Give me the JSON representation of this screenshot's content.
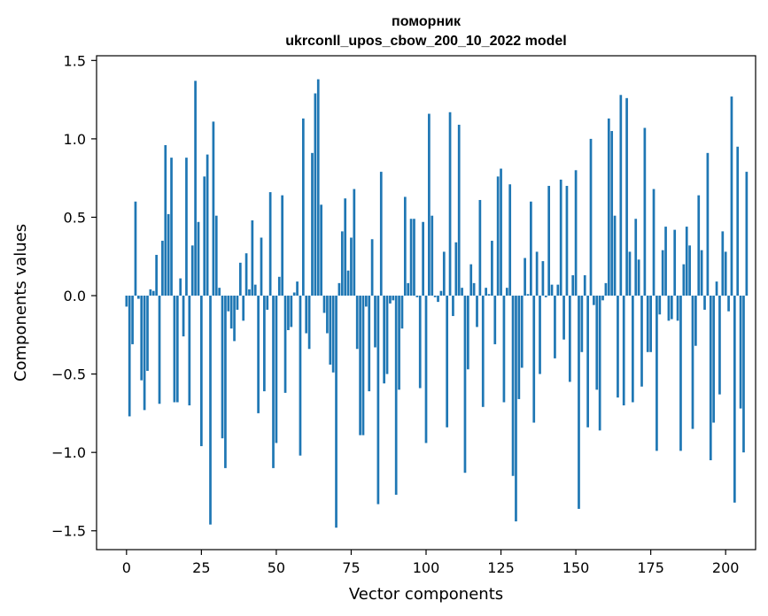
{
  "chart_data": {
    "type": "bar",
    "title": "поморник",
    "subtitle": "ukrconll_upos_cbow_200_10_2022 model",
    "xlabel": "Vector components",
    "ylabel": "Components values",
    "xlim": [
      -10,
      210
    ],
    "ylim": [
      -1.62,
      1.53
    ],
    "xticks": [
      0,
      25,
      50,
      75,
      100,
      125,
      150,
      175,
      200
    ],
    "yticks": [
      -1.5,
      -1.0,
      -0.5,
      0.0,
      0.5,
      1.0,
      1.5
    ],
    "ytick_labels": [
      "−1.5",
      "−1.0",
      "−0.5",
      "0.0",
      "0.5",
      "1.0",
      "1.5"
    ],
    "bar_color": "#1f77b4",
    "grid": false,
    "values": [
      -0.07,
      -0.77,
      -0.31,
      0.6,
      -0.02,
      -0.54,
      -0.73,
      -0.48,
      0.04,
      0.03,
      0.26,
      -0.69,
      0.35,
      0.96,
      0.52,
      0.88,
      -0.68,
      -0.68,
      0.11,
      -0.26,
      0.88,
      -0.7,
      0.32,
      1.37,
      0.47,
      -0.96,
      0.76,
      0.9,
      -1.46,
      1.11,
      0.51,
      0.05,
      -0.91,
      -1.1,
      -0.1,
      -0.21,
      -0.29,
      -0.09,
      0.21,
      -0.16,
      0.27,
      0.04,
      0.48,
      0.07,
      -0.75,
      0.37,
      -0.61,
      -0.09,
      0.66,
      -1.1,
      -0.94,
      0.12,
      0.64,
      -0.62,
      -0.22,
      -0.2,
      0.02,
      0.09,
      -1.02,
      1.13,
      -0.24,
      -0.34,
      0.91,
      1.29,
      1.38,
      0.58,
      -0.11,
      -0.24,
      -0.44,
      -0.49,
      -1.48,
      0.08,
      0.41,
      0.62,
      0.16,
      0.37,
      0.68,
      -0.34,
      -0.89,
      -0.89,
      -0.07,
      -0.61,
      0.36,
      -0.33,
      -1.33,
      0.79,
      -0.56,
      -0.5,
      -0.05,
      -0.03,
      -1.27,
      -0.6,
      -0.21,
      0.63,
      0.08,
      0.49,
      0.49,
      -0.01,
      -0.59,
      0.47,
      -0.94,
      1.16,
      0.51,
      -0.01,
      -0.04,
      0.03,
      0.28,
      -0.84,
      1.17,
      -0.13,
      0.34,
      1.09,
      0.05,
      -1.13,
      -0.47,
      0.2,
      0.08,
      -0.2,
      0.61,
      -0.71,
      0.05,
      0.01,
      0.35,
      -0.31,
      0.76,
      0.81,
      -0.68,
      0.05,
      0.71,
      -1.15,
      -1.44,
      -0.66,
      -0.46,
      0.24,
      0.01,
      0.6,
      -0.81,
      0.28,
      -0.5,
      0.22,
      -0.01,
      0.7,
      0.07,
      -0.4,
      0.07,
      0.74,
      -0.28,
      0.7,
      -0.55,
      0.13,
      0.8,
      -1.36,
      -0.36,
      0.13,
      -0.84,
      1.0,
      -0.06,
      -0.6,
      -0.86,
      -0.03,
      0.08,
      1.13,
      1.05,
      0.51,
      -0.65,
      1.28,
      -0.7,
      1.26,
      0.28,
      -0.68,
      0.49,
      0.23,
      -0.58,
      1.07,
      -0.36,
      -0.36,
      0.68,
      -0.99,
      -0.12,
      0.29,
      0.44,
      -0.16,
      -0.15,
      0.42,
      -0.16,
      -0.99,
      0.2,
      0.44,
      0.32,
      -0.85,
      -0.32,
      0.64,
      0.29,
      -0.09,
      0.91,
      -1.05,
      -0.81,
      0.09,
      -0.63,
      0.41,
      0.28,
      -0.1,
      1.27,
      -1.32,
      0.95,
      -0.72,
      -1.0,
      0.79
    ]
  }
}
